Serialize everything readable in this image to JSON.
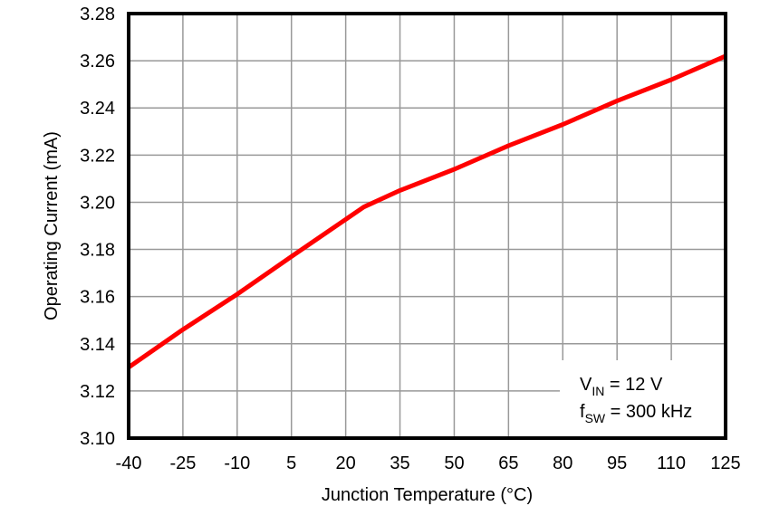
{
  "chart_data": {
    "type": "line",
    "title": "",
    "xlabel": "Junction Temperature (°C)",
    "ylabel": "Operating Current (mA)",
    "xlim": [
      -40,
      125
    ],
    "ylim": [
      3.1,
      3.28
    ],
    "grid": true,
    "x_ticks": [
      "-40",
      "-25",
      "-10",
      "5",
      "20",
      "35",
      "50",
      "65",
      "80",
      "95",
      "110",
      "125"
    ],
    "y_ticks": [
      "3.10",
      "3.12",
      "3.14",
      "3.16",
      "3.18",
      "3.20",
      "3.22",
      "3.24",
      "3.26",
      "3.28"
    ],
    "series": [
      {
        "name": "Operating Current",
        "color": "#ff0000",
        "x": [
          -40,
          -25,
          -10,
          5,
          25,
          35,
          50,
          65,
          80,
          95,
          110,
          125
        ],
        "y": [
          3.13,
          3.146,
          3.161,
          3.177,
          3.198,
          3.205,
          3.214,
          3.224,
          3.233,
          3.243,
          3.252,
          3.262
        ]
      }
    ],
    "annotations": [
      {
        "main": "V",
        "sub": "IN",
        "rest": " = 12 V"
      },
      {
        "main": "f",
        "sub": "SW",
        "rest": " = 300 kHz"
      }
    ],
    "legend_position": "lower right (inside plot)"
  },
  "colors": {
    "line": "#ff0000",
    "grid": "#999999",
    "frame": "#000000",
    "background": "#ffffff"
  }
}
